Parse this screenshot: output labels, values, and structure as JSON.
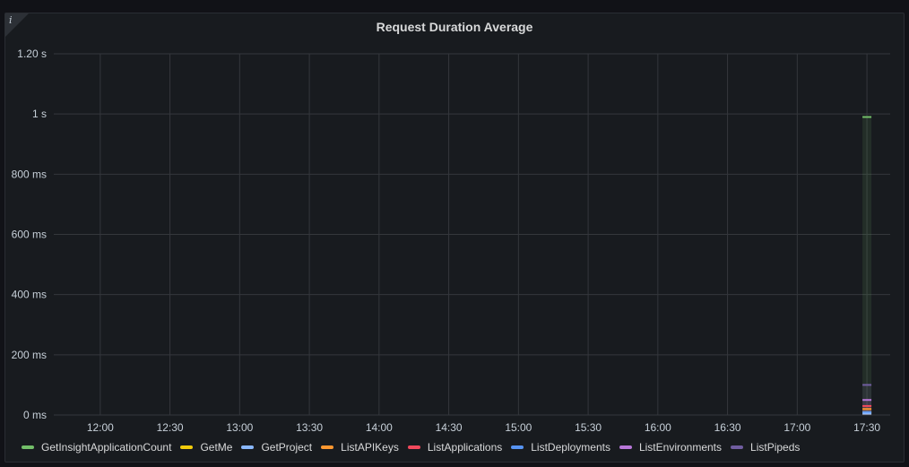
{
  "panel": {
    "info_icon": "i",
    "title": "Request Duration Average"
  },
  "chart_data": {
    "type": "bar",
    "title": "Request Duration Average",
    "y_unit": "s",
    "ylim": [
      0,
      1.2
    ],
    "yticks": [
      {
        "value": 0,
        "label": "0 ms"
      },
      {
        "value": 0.2,
        "label": "200 ms"
      },
      {
        "value": 0.4,
        "label": "400 ms"
      },
      {
        "value": 0.6,
        "label": "600 ms"
      },
      {
        "value": 0.8,
        "label": "800 ms"
      },
      {
        "value": 1.0,
        "label": "1 s"
      },
      {
        "value": 1.2,
        "label": "1.20 s"
      }
    ],
    "xticks": [
      "12:00",
      "12:30",
      "13:00",
      "13:30",
      "14:00",
      "14:30",
      "15:00",
      "15:30",
      "16:00",
      "16:30",
      "17:00",
      "17:30"
    ],
    "xlim": [
      "11:40",
      "17:40"
    ],
    "grid": true,
    "legend_position": "bottom",
    "x": [
      "17:30"
    ],
    "series": [
      {
        "name": "GetInsightApplicationCount",
        "color": "#73bf69",
        "values": [
          0.99
        ]
      },
      {
        "name": "GetMe",
        "color": "#f2cc0c",
        "values": [
          0.01
        ]
      },
      {
        "name": "GetProject",
        "color": "#8ab8ff",
        "values": [
          0.005
        ]
      },
      {
        "name": "ListAPIKeys",
        "color": "#ff9830",
        "values": [
          0.02
        ]
      },
      {
        "name": "ListApplications",
        "color": "#f2495c",
        "values": [
          0.03
        ]
      },
      {
        "name": "ListDeployments",
        "color": "#5794f2",
        "values": [
          0.01
        ]
      },
      {
        "name": "ListEnvironments",
        "color": "#b877d9",
        "values": [
          0.05
        ]
      },
      {
        "name": "ListPipeds",
        "color": "#705da0",
        "values": [
          0.1
        ]
      }
    ]
  }
}
